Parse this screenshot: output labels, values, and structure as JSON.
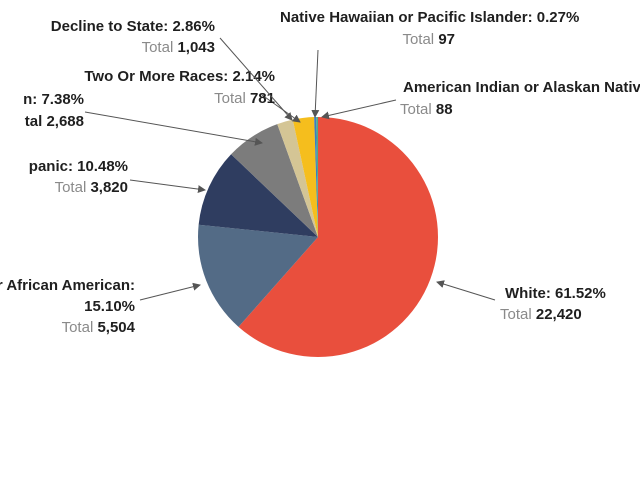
{
  "chart_data": {
    "type": "pie",
    "categories": [
      "White",
      "Black or African American",
      "Hispanic",
      "Asian",
      "Two Or More Races",
      "Decline to State",
      "Native Hawaiian or Pacific Islander",
      "American Indian or Alaskan Native"
    ],
    "values": [
      61.52,
      15.1,
      10.48,
      7.38,
      2.14,
      2.86,
      0.27,
      0.24
    ],
    "labels": [
      [
        "White: 61.52%"
      ],
      [
        "r African American:",
        "15.10%"
      ],
      [
        "panic: 10.48%"
      ],
      [
        "n: 7.38%"
      ],
      [
        "Two Or More Races: 2.14%"
      ],
      [
        "Decline to State: 2.86%"
      ],
      [
        "Native Hawaiian or Pacific Islander: 0.27%"
      ],
      [
        "American Indian or Alaskan Nativ"
      ]
    ],
    "total_word": "Total",
    "totals": [
      22420,
      5504,
      3820,
      2688,
      781,
      1043,
      97,
      88
    ],
    "total_labels": [
      "22,420",
      "5,504",
      "3,820",
      "tal 2,688",
      "781",
      "1,043",
      "97",
      "88"
    ],
    "colors": [
      "#e94f3d",
      "#536b86",
      "#2f3d60",
      "#7c7c7c",
      "#d4c595",
      "#f5be1d",
      "#3a7cc4",
      "#4fa88a"
    ]
  }
}
